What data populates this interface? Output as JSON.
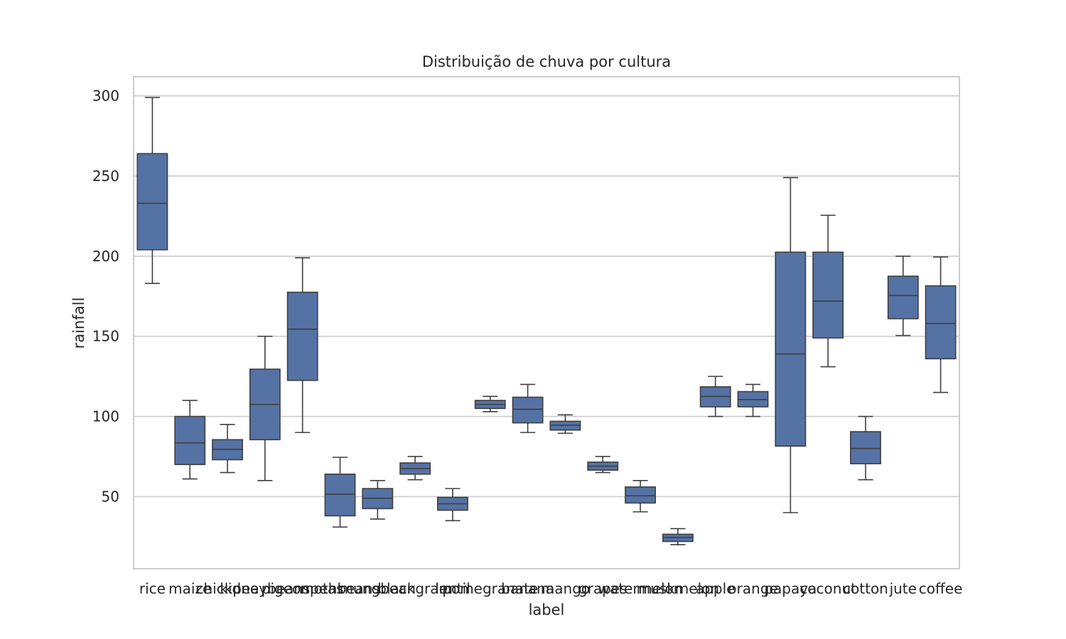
{
  "chart_data": {
    "type": "box",
    "title": "Distribuição de chuva por cultura",
    "xlabel": "label",
    "ylabel": "rainfall",
    "ylim": [
      5,
      312
    ],
    "yticks": [
      50,
      100,
      150,
      200,
      250,
      300
    ],
    "grid": "y",
    "colors": {
      "box": "#5572a4",
      "line": "#3f3f3f",
      "grid": "#cccccc",
      "frame": "#cccccc"
    },
    "categories": [
      "rice",
      "maize",
      "chickpea",
      "kidneybeans",
      "pigeonpeas",
      "mothbeans",
      "mungbean",
      "blackgram",
      "lentil",
      "pomegranate",
      "banana",
      "mango",
      "grapes",
      "watermelon",
      "muskmelon",
      "apple",
      "orange",
      "papaya",
      "coconut",
      "cotton",
      "jute",
      "coffee"
    ],
    "boxes": [
      {
        "min": 183,
        "q1": 204,
        "median": 233,
        "q3": 264,
        "max": 299
      },
      {
        "min": 61,
        "q1": 70,
        "median": 83.5,
        "q3": 100,
        "max": 110
      },
      {
        "min": 65,
        "q1": 73,
        "median": 79.5,
        "q3": 85.5,
        "max": 95
      },
      {
        "min": 60,
        "q1": 85.5,
        "median": 107.5,
        "q3": 129.5,
        "max": 150
      },
      {
        "min": 90,
        "q1": 122.5,
        "median": 154.5,
        "q3": 177.5,
        "max": 199
      },
      {
        "min": 31,
        "q1": 38,
        "median": 51.5,
        "q3": 64,
        "max": 74.5
      },
      {
        "min": 36,
        "q1": 42.5,
        "median": 49,
        "q3": 55,
        "max": 60
      },
      {
        "min": 60.5,
        "q1": 64,
        "median": 67.5,
        "q3": 71,
        "max": 75
      },
      {
        "min": 35,
        "q1": 41.5,
        "median": 45.5,
        "q3": 49.5,
        "max": 55
      },
      {
        "min": 103,
        "q1": 105,
        "median": 107.5,
        "q3": 110,
        "max": 112.5
      },
      {
        "min": 90,
        "q1": 96,
        "median": 104.5,
        "q3": 112,
        "max": 120
      },
      {
        "min": 89.5,
        "q1": 91.5,
        "median": 94.5,
        "q3": 97,
        "max": 101
      },
      {
        "min": 65,
        "q1": 66.5,
        "median": 69,
        "q3": 71.5,
        "max": 75
      },
      {
        "min": 40.5,
        "q1": 46,
        "median": 50.5,
        "q3": 56,
        "max": 60
      },
      {
        "min": 20,
        "q1": 22,
        "median": 24.5,
        "q3": 26.5,
        "max": 30
      },
      {
        "min": 100,
        "q1": 106,
        "median": 112.5,
        "q3": 118.5,
        "max": 125
      },
      {
        "min": 100,
        "q1": 106,
        "median": 110.5,
        "q3": 115.5,
        "max": 120
      },
      {
        "min": 40,
        "q1": 81.5,
        "median": 139,
        "q3": 202.5,
        "max": 249
      },
      {
        "min": 131,
        "q1": 149,
        "median": 172,
        "q3": 202.5,
        "max": 225.5
      },
      {
        "min": 60.5,
        "q1": 70.5,
        "median": 80,
        "q3": 90.5,
        "max": 100
      },
      {
        "min": 150.5,
        "q1": 161,
        "median": 175.5,
        "q3": 187.5,
        "max": 200
      },
      {
        "min": 115,
        "q1": 136,
        "median": 158,
        "q3": 181.5,
        "max": 199.5
      }
    ]
  }
}
